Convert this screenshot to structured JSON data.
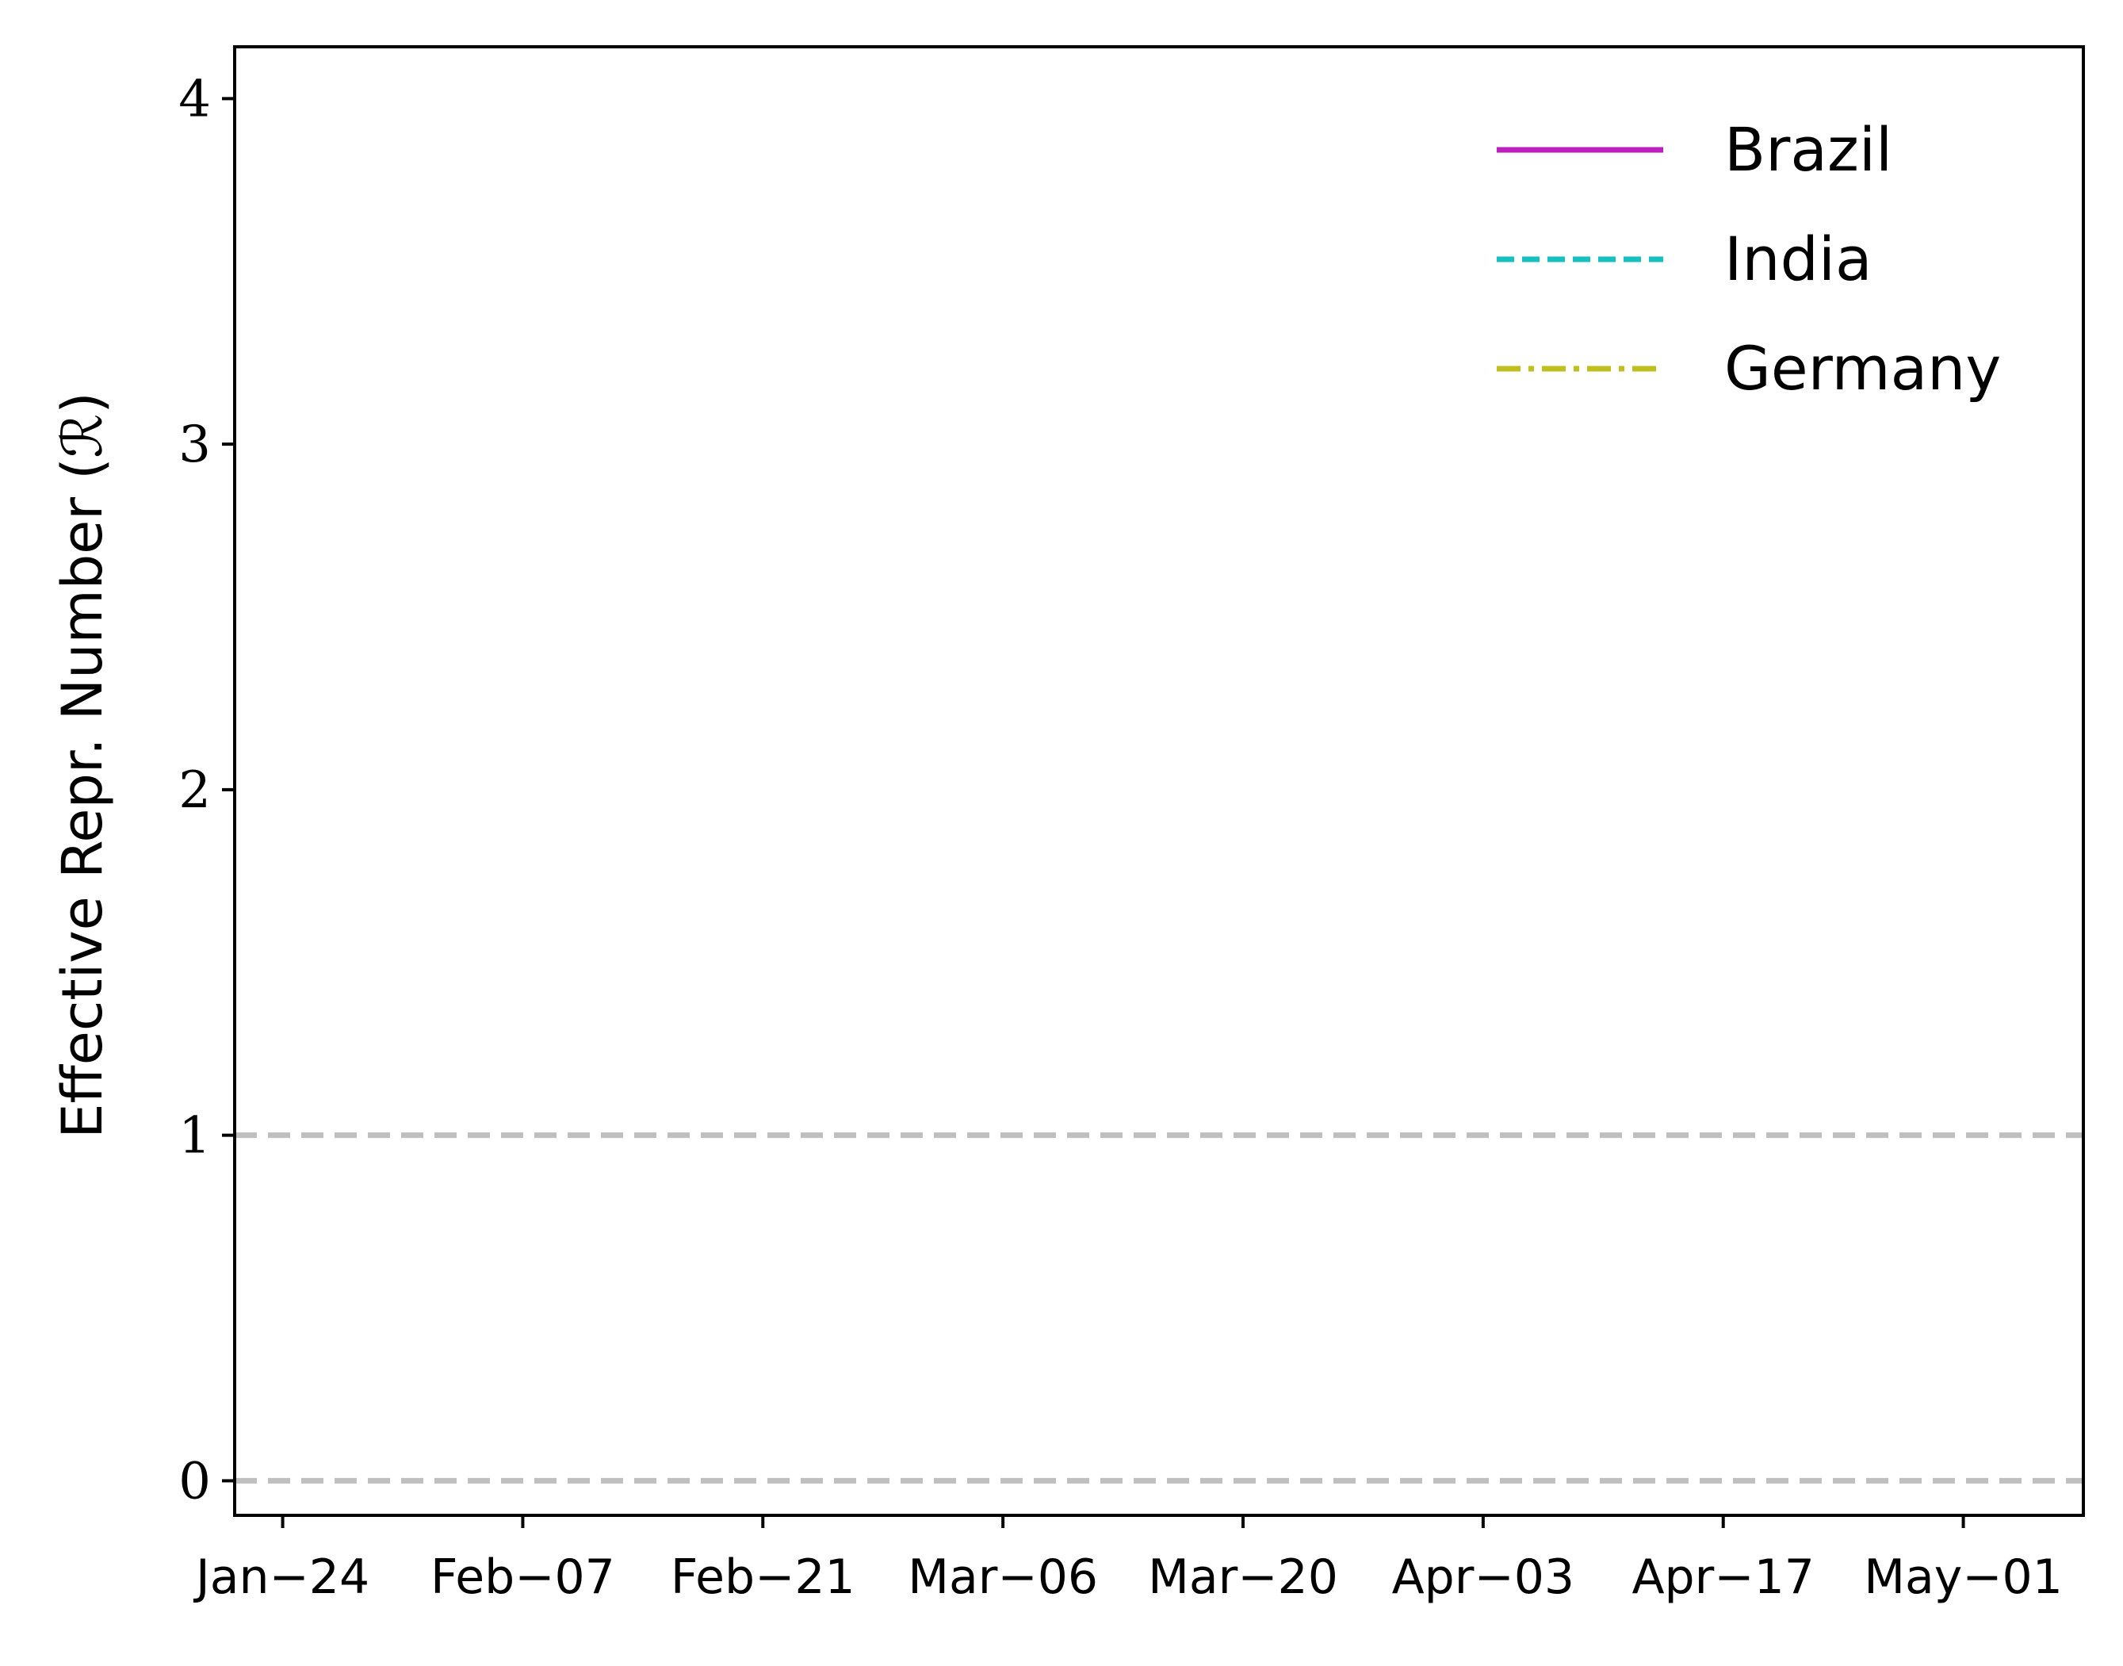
{
  "chart_data": {
    "type": "line",
    "ylabel": "Effective Repr. Number (ℛ)",
    "xlabel": "",
    "ylim": [
      -0.1,
      4.15
    ],
    "yticks": [
      0,
      1,
      2,
      3,
      4
    ],
    "xticks": [
      "Jan−24",
      "Feb−07",
      "Feb−21",
      "Mar−06",
      "Mar−20",
      "Apr−03",
      "Apr−17",
      "May−01"
    ],
    "xlim_ticks": [
      -0.2,
      7.5
    ],
    "reference_lines": [
      {
        "y": 1,
        "style": "dashed",
        "color": "#bfbfbf"
      },
      {
        "y": 0,
        "style": "dashed",
        "color": "#bfbfbf"
      }
    ],
    "series": [
      {
        "name": "Brazil",
        "color": "#bf1fbf",
        "style": "solid",
        "values": []
      },
      {
        "name": "India",
        "color": "#17bfbf",
        "style": "dashed",
        "values": []
      },
      {
        "name": "Germany",
        "color": "#bfbf1f",
        "style": "dashdot",
        "values": []
      }
    ],
    "legend": "top-right",
    "grid": false
  }
}
